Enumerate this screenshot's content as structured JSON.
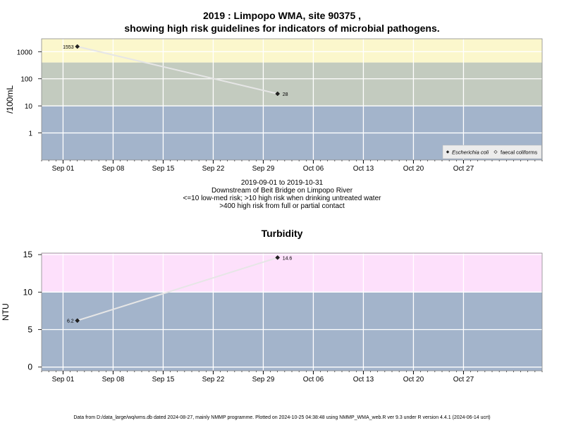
{
  "chart_data": [
    {
      "type": "line",
      "title": "2019 : Limpopo WMA, site 90375 ,",
      "title_line2": "showing high risk guidelines for indicators of microbial pathogens.",
      "ylabel": "/100mL",
      "y_scale": "log",
      "ylim": [
        0.1,
        3000
      ],
      "yticks": [
        1,
        10,
        100,
        1000
      ],
      "ytick_labels": [
        "1",
        "10",
        "100",
        "1000"
      ],
      "xlim": [
        "2019-08-29",
        "2019-11-07"
      ],
      "xticks": [
        "2019-09-01",
        "2019-09-08",
        "2019-09-15",
        "2019-09-22",
        "2019-09-29",
        "2019-10-06",
        "2019-10-13",
        "2019-10-20",
        "2019-10-27"
      ],
      "xtick_labels": [
        "Sep 01",
        "Sep 08",
        "Sep 15",
        "Sep 22",
        "Sep 29",
        "Oct 06",
        "Oct 13",
        "Oct 20",
        "Oct 27"
      ],
      "bands": [
        {
          "from": 0.1,
          "to": 10,
          "color": "#a3b4cb",
          "meaning": "low-med risk"
        },
        {
          "from": 10,
          "to": 400,
          "color": "#c3cbbf",
          "meaning": "high risk when drinking untreated water"
        },
        {
          "from": 400,
          "to": 3000,
          "color": "#fbf7cc",
          "meaning": "high risk from full or partial contact"
        }
      ],
      "series": [
        {
          "name": "Escherichia coli",
          "marker": "filled-diamond",
          "points": [
            {
              "x": "2019-09-03",
              "y": 1553,
              "label": "1553"
            },
            {
              "x": "2019-10-01",
              "y": 28,
              "label": "28"
            }
          ]
        }
      ],
      "legend": {
        "position": "bottom-right",
        "entries": [
          "Escherichia coli",
          "faecal coliforms"
        ]
      },
      "captions": [
        "2019-09-01 to 2019-10-31",
        "Downstream of Beit Bridge on Limpopo River",
        "<=10 low-med risk; >10 high risk when drinking untreated water",
        ">400 high risk from full or partial contact"
      ],
      "grid": true
    },
    {
      "type": "line",
      "title": "Turbidity",
      "ylabel": "NTU",
      "ylim": [
        -0.5,
        15.2
      ],
      "yticks": [
        0,
        5,
        10,
        15
      ],
      "ytick_labels": [
        "0",
        "5",
        "10",
        "15"
      ],
      "xlim": [
        "2019-08-29",
        "2019-11-07"
      ],
      "xticks": [
        "2019-09-01",
        "2019-09-08",
        "2019-09-15",
        "2019-09-22",
        "2019-09-29",
        "2019-10-06",
        "2019-10-13",
        "2019-10-20",
        "2019-10-27"
      ],
      "xtick_labels": [
        "Sep 01",
        "Sep 08",
        "Sep 15",
        "Sep 22",
        "Sep 29",
        "Oct 06",
        "Oct 13",
        "Oct 20",
        "Oct 27"
      ],
      "bands": [
        {
          "from": -0.5,
          "to": 10,
          "color": "#a3b4cb"
        },
        {
          "from": 10,
          "to": 15.2,
          "color": "#fde0fb"
        }
      ],
      "series": [
        {
          "name": "",
          "marker": "filled-diamond",
          "points": [
            {
              "x": "2019-09-03",
              "y": 6.2,
              "label": "6.2"
            },
            {
              "x": "2019-10-01",
              "y": 14.6,
              "label": "14.6"
            }
          ]
        }
      ],
      "grid": true
    }
  ],
  "footer": "Data from D:/data_large/wq/wms.db dated 2024-08-27, mainly NMMP programme. Plotted on 2024-10-25 04:38:48 using NMMP_WMA_web.R ver 9.3 under R version 4.4.1 (2024-06-14 ucrt)"
}
